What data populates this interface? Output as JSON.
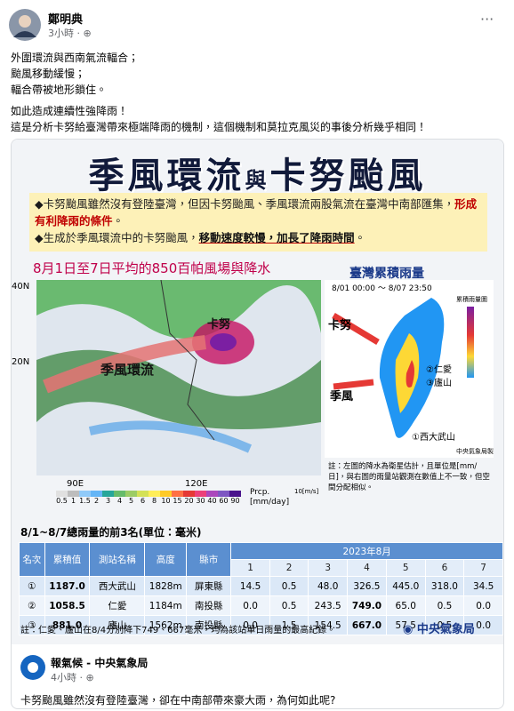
{
  "header": {
    "author": "鄭明典",
    "time": "3小時",
    "menu": "···"
  },
  "post": {
    "lines": [
      "外圍環流與西南氣流輻合；",
      "颱風移動緩慢；",
      "輻合帶被地形鎖住。",
      "如此造成連續性強降雨！",
      "這是分析卡努給臺灣帶來極端降雨的機制，這個機制和莫拉克風災的事後分析幾乎相同！"
    ]
  },
  "infographic": {
    "title_parts": [
      "季風環流",
      "與",
      "卡努颱風"
    ],
    "bullet1": [
      "◆卡努颱風雖然沒有登陸臺灣，但因卡努颱風、季風環流兩股氣流在臺灣中南部匯集，",
      "形成有利降雨的條件",
      "。"
    ],
    "bullet2": [
      "◆生成於季風環流中的卡努颱風，",
      "移動速度較慢，加長了降雨時間",
      "。"
    ],
    "left_map": {
      "title": "8月1日至7日平均的850百帕風場與降水",
      "lat_labels": [
        "40N",
        "20N"
      ],
      "lon_labels": [
        "90E",
        "120E"
      ],
      "labels": [
        "季風環流",
        "卡努"
      ],
      "colorbar": [
        "0.5",
        "1",
        "1.5",
        "2",
        "3",
        "4",
        "5",
        "6",
        "8",
        "10",
        "15",
        "20",
        "30",
        "40",
        "60",
        "90"
      ],
      "unit": "Prcp. [mm/day]",
      "vector": "10[m/s]"
    },
    "right_map": {
      "title": "臺灣累積雨量",
      "period": "8/01 00:00 ～ 8/07 23:50",
      "legend_title": "累積雨量圖",
      "labels": [
        "卡努",
        "季風",
        "②仁愛",
        "③廬山",
        "①西大武山"
      ],
      "note": "註：左圖的降水為衛星估計，且單位是[mm/日]，與右圖的雨量站觀測在數值上不一致，但空間分配相似。",
      "credit": "中央氣象局製"
    },
    "table": {
      "title": "8/1~8/7總雨量的前3名(單位：毫米)",
      "headers": [
        "名次",
        "累積值",
        "測站名稱",
        "高度",
        "縣市"
      ],
      "month": "2023年8月",
      "days": [
        "1",
        "2",
        "3",
        "4",
        "5",
        "6",
        "7"
      ],
      "rows": [
        [
          "①",
          "1187.0",
          "西大武山",
          "1828m",
          "屏東縣",
          "14.5",
          "0.5",
          "48.0",
          "326.5",
          "445.0",
          "318.0",
          "34.5"
        ],
        [
          "②",
          "1058.5",
          "仁愛",
          "1184m",
          "南投縣",
          "0.0",
          "0.5",
          "243.5",
          "749.0",
          "65.0",
          "0.5",
          "0.0"
        ],
        [
          "③",
          "881.0",
          "廬山",
          "1562m",
          "南投縣",
          "0.0",
          "1.5",
          "154.5",
          "667.0",
          "57.5",
          "0.5",
          "0.0"
        ]
      ]
    },
    "footnote": "註：仁愛、廬山在8/4分別降下749、667毫米，均為該站單日雨量的最高紀錄。",
    "logo": "中央氣象局"
  },
  "shared": {
    "name": "報氣候 - 中央氣象局",
    "time": "4小時",
    "text": "卡努颱風雖然沒有登陸臺灣，卻在中南部帶來豪大雨，為何如此呢?"
  }
}
